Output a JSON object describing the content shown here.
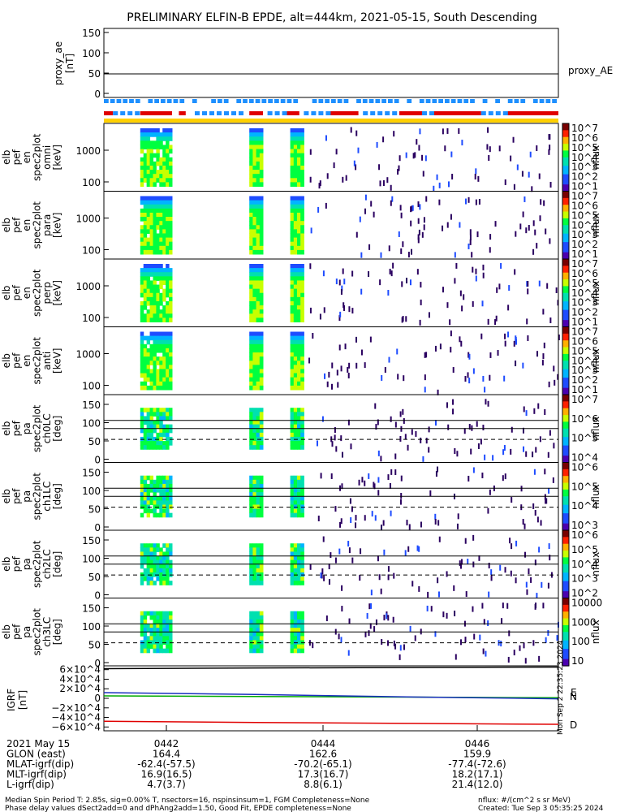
{
  "chart_data": {
    "type": "heatmap",
    "title": "PRELIMINARY ELFIN-B EPDE, alt=444km, 2021-05-15, South Descending",
    "time_ticks": [
      "0442",
      "0444",
      "0446"
    ],
    "proxy_ae": {
      "ylabel": "proxy_ae",
      "yunit": "[nT]",
      "legend": "proxy_AE",
      "yticks": [
        "150",
        "100",
        "50",
        "0"
      ],
      "ylim": [
        -10,
        160
      ],
      "value": 50
    },
    "status_bars": {
      "colors": {
        "blue": "#1e90ff",
        "red": "#e00000",
        "yellow": "#ffd000"
      },
      "red_segments": [
        [
          0.0,
          0.02
        ],
        [
          0.08,
          0.15
        ],
        [
          0.165,
          0.18
        ],
        [
          0.32,
          0.35
        ],
        [
          0.4,
          0.43
        ],
        [
          0.49,
          0.56
        ],
        [
          0.65,
          0.7
        ],
        [
          0.72,
          0.83
        ],
        [
          0.88,
          1.0
        ]
      ],
      "blue_segments": [
        [
          0.02,
          0.07
        ],
        [
          0.2,
          0.3
        ],
        [
          0.36,
          0.4
        ],
        [
          0.44,
          0.5
        ],
        [
          0.57,
          0.64
        ],
        [
          0.7,
          0.72
        ],
        [
          0.83,
          0.88
        ]
      ]
    },
    "panels": [
      {
        "ylabel": [
          "elb",
          "pef",
          "en",
          "spec2plot",
          "omni",
          "[keV]"
        ],
        "yticks": [
          "1000",
          "100"
        ],
        "cbar_label": "nflux",
        "cbar_ticks": [
          "10^7",
          "10^6",
          "10^5",
          "10^4",
          "10^3",
          "10^2",
          "10^1"
        ]
      },
      {
        "ylabel": [
          "elb",
          "pef",
          "en",
          "spec2plot",
          "para",
          "[keV]"
        ],
        "yticks": [
          "1000",
          "100"
        ],
        "cbar_label": "nflux",
        "cbar_ticks": [
          "10^7",
          "10^6",
          "10^5",
          "10^4",
          "10^3",
          "10^2",
          "10^1"
        ]
      },
      {
        "ylabel": [
          "elb",
          "pef",
          "en",
          "spec2plot",
          "perp",
          "[keV]"
        ],
        "yticks": [
          "1000",
          "100"
        ],
        "cbar_label": "nflux",
        "cbar_ticks": [
          "10^7",
          "10^6",
          "10^5",
          "10^4",
          "10^3",
          "10^2",
          "10^1"
        ]
      },
      {
        "ylabel": [
          "elb",
          "pef",
          "en",
          "spec2plot",
          "anti",
          "[keV]"
        ],
        "yticks": [
          "1000",
          "100"
        ],
        "cbar_label": "nflux",
        "cbar_ticks": [
          "10^7",
          "10^6",
          "10^5",
          "10^4",
          "10^3",
          "10^2",
          "10^1"
        ]
      },
      {
        "ylabel": [
          "elb",
          "pef",
          "pa",
          "spec2plot",
          "ch0LC",
          "[deg]"
        ],
        "yticks": [
          "150",
          "100",
          "50",
          "0"
        ],
        "cbar_label": "nflux",
        "cbar_ticks": [
          "10^7",
          "10^6",
          "10^5",
          "10^4"
        ]
      },
      {
        "ylabel": [
          "elb",
          "pef",
          "pa",
          "spec2plot",
          "ch1LC",
          "[deg]"
        ],
        "yticks": [
          "150",
          "100",
          "50",
          "0"
        ],
        "cbar_label": "nflux",
        "cbar_ticks": [
          "10^6",
          "10^5",
          "10^4",
          "10^3"
        ]
      },
      {
        "ylabel": [
          "elb",
          "pef",
          "pa",
          "spec2plot",
          "ch2LC",
          "[deg]"
        ],
        "yticks": [
          "150",
          "100",
          "50",
          "0"
        ],
        "cbar_label": "nflux",
        "cbar_ticks": [
          "10^6",
          "10^5",
          "10^4",
          "10^3",
          "10^2"
        ]
      },
      {
        "ylabel": [
          "elb",
          "pef",
          "pa",
          "spec2plot",
          "ch3LC",
          "[deg]"
        ],
        "yticks": [
          "150",
          "100",
          "50",
          "0"
        ],
        "cbar_label": "nflux",
        "cbar_ticks": [
          "10000",
          "1000",
          "100",
          "10"
        ]
      }
    ],
    "igrf": {
      "ylabel": "IGRF",
      "yunit": "[nT]",
      "yticks": [
        "6×10^4",
        "4×10^4",
        "2×10^4",
        "0",
        "−2×10^4",
        "−4×10^4",
        "−6×10^4"
      ],
      "ylim": [
        -68000,
        68000
      ],
      "series": [
        {
          "name": "E",
          "color": "#00aa00",
          "values": [
            5000,
            3800,
            2500,
            1200
          ]
        },
        {
          "name": "N",
          "color": "#1a2fbf",
          "values": [
            12000,
            8000,
            3000,
            -1000
          ]
        },
        {
          "name": "D",
          "color": "#e00000",
          "values": [
            -48000,
            -50500,
            -52500,
            -54500
          ]
        },
        {
          "name": "",
          "color": "#000000",
          "values": [
            62000,
            63500,
            64500,
            65500
          ]
        }
      ]
    },
    "ephemeris": {
      "rows": [
        {
          "label": "2021 May 15",
          "values": [
            "0442",
            "0444",
            "0446"
          ]
        },
        {
          "label": "GLON (east)",
          "values": [
            "164.4",
            "162.6",
            "159.9"
          ]
        },
        {
          "label": "MLAT-igrf(dip)",
          "values": [
            "-62.4(-57.5)",
            "-70.2(-65.1)",
            "-77.4(-72.6)"
          ]
        },
        {
          "label": "MLT-igrf(dip)",
          "values": [
            "16.9(16.5)",
            "17.3(16.7)",
            "18.2(17.1)"
          ]
        },
        {
          "label": "L-igrf(dip)",
          "values": [
            "4.7(3.7)",
            "8.8(6.1)",
            "21.4(12.0)"
          ]
        }
      ]
    }
  },
  "footer": {
    "line1": "Median Spin Period T: 2.85s, sig=0.00% T, nsectors=16, nspinsinsum=1, FGM Completeness=None",
    "line2": "Phase delay values dSect2add=0 and dPhAng2add=1.50, Good Fit, EPDE completeness=None",
    "units": "nflux: #/(cm^2 s sr MeV)",
    "created": "Created: Tue Sep  3 05:35:25 2024",
    "stamp": "Mon Sep  2 22:35:23 2024"
  }
}
